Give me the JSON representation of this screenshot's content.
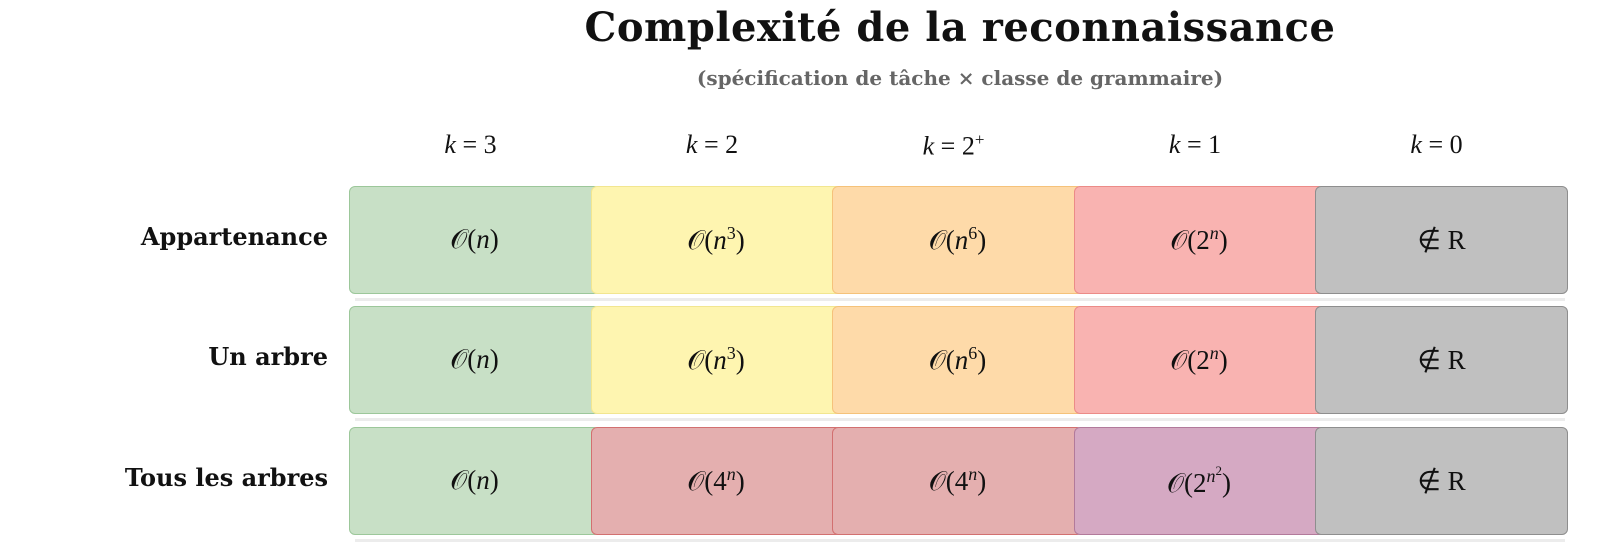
{
  "title": "Complexité de la reconnaissance",
  "subtitle": "(spécification de tâche × classe de grammaire)",
  "columns": [
    {
      "var": "k",
      "eq": " = ",
      "val": "3",
      "sup": ""
    },
    {
      "var": "k",
      "eq": " = ",
      "val": "2",
      "sup": ""
    },
    {
      "var": "k",
      "eq": " = ",
      "val": "2",
      "sup": "+"
    },
    {
      "var": "k",
      "eq": " = ",
      "val": "1",
      "sup": ""
    },
    {
      "var": "k",
      "eq": " = ",
      "val": "0",
      "sup": ""
    }
  ],
  "colors": {
    "green": {
      "fill": "#c8e0c6",
      "border": "#9cc79a"
    },
    "yellow": {
      "fill": "#fef5b0",
      "border": "#f2e690"
    },
    "orange": {
      "fill": "#fedaa9",
      "border": "#f5c27a"
    },
    "salmon": {
      "fill": "#f9b3b1",
      "border": "#ec8b88"
    },
    "gray": {
      "fill": "#c0c0c0",
      "border": "#8e8e8e"
    },
    "rose": {
      "fill": "#e4afaf",
      "border": "#d27070"
    },
    "purple": {
      "fill": "#d5a9c3",
      "border": "#b27a9b"
    }
  },
  "rows": [
    {
      "label": "Appartenance",
      "cells": [
        {
          "pre": "𝒪(",
          "b": "n",
          "sup": "",
          "sup2": "",
          "post": ")",
          "color": "green"
        },
        {
          "pre": "𝒪(",
          "b": "n",
          "sup": "3",
          "sup2": "",
          "post": ")",
          "color": "yellow"
        },
        {
          "pre": "𝒪(",
          "b": "n",
          "sup": "6",
          "sup2": "",
          "post": ")",
          "color": "orange"
        },
        {
          "pre": "𝒪(",
          "b": "2",
          "sup": "n",
          "sup2": "",
          "post": ")",
          "color": "salmon"
        },
        {
          "pre": "∉ R",
          "b": "",
          "sup": "",
          "sup2": "",
          "post": "",
          "color": "gray"
        }
      ]
    },
    {
      "label": "Un arbre",
      "cells": [
        {
          "pre": "𝒪(",
          "b": "n",
          "sup": "",
          "sup2": "",
          "post": ")",
          "color": "green"
        },
        {
          "pre": "𝒪(",
          "b": "n",
          "sup": "3",
          "sup2": "",
          "post": ")",
          "color": "yellow"
        },
        {
          "pre": "𝒪(",
          "b": "n",
          "sup": "6",
          "sup2": "",
          "post": ")",
          "color": "orange"
        },
        {
          "pre": "𝒪(",
          "b": "2",
          "sup": "n",
          "sup2": "",
          "post": ")",
          "color": "salmon"
        },
        {
          "pre": "∉ R",
          "b": "",
          "sup": "",
          "sup2": "",
          "post": "",
          "color": "gray"
        }
      ]
    },
    {
      "label": "Tous les arbres",
      "cells": [
        {
          "pre": "𝒪(",
          "b": "n",
          "sup": "",
          "sup2": "",
          "post": ")",
          "color": "green"
        },
        {
          "pre": "𝒪(",
          "b": "4",
          "sup": "n",
          "sup2": "",
          "post": ")",
          "color": "rose"
        },
        {
          "pre": "𝒪(",
          "b": "4",
          "sup": "n",
          "sup2": "",
          "post": ")",
          "color": "rose"
        },
        {
          "pre": "𝒪(",
          "b": "2",
          "sup": "n",
          "sup2": "2",
          "post": ")",
          "color": "purple"
        },
        {
          "pre": "∉ R",
          "b": "",
          "sup": "",
          "sup2": "",
          "post": "",
          "color": "gray"
        }
      ]
    }
  ]
}
